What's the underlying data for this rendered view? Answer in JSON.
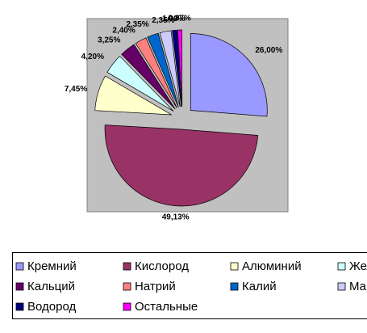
{
  "chart_data": {
    "type": "pie",
    "categories": [
      "Кремний",
      "Кислород",
      "Алюминий",
      "Железо",
      "Кальций",
      "Натрий",
      "Калий",
      "Магний",
      "Водород",
      "Остальные"
    ],
    "values": [
      26,
      49.13,
      7.45,
      4.2,
      3.25,
      2.4,
      2.35,
      2.35,
      1,
      0.87
    ],
    "value_labels": [
      "26,00%",
      "49,13%",
      "7,45%",
      "4,20%",
      "3,25%",
      "2,40%",
      "2,35%",
      "2,35%",
      "1,00%",
      "0,87%"
    ],
    "colors": [
      "#9999ff",
      "#993366",
      "#ffffcc",
      "#ccffff",
      "#660066",
      "#ff8080",
      "#0066cc",
      "#ccccff",
      "#000080",
      "#ff00ff"
    ]
  }
}
